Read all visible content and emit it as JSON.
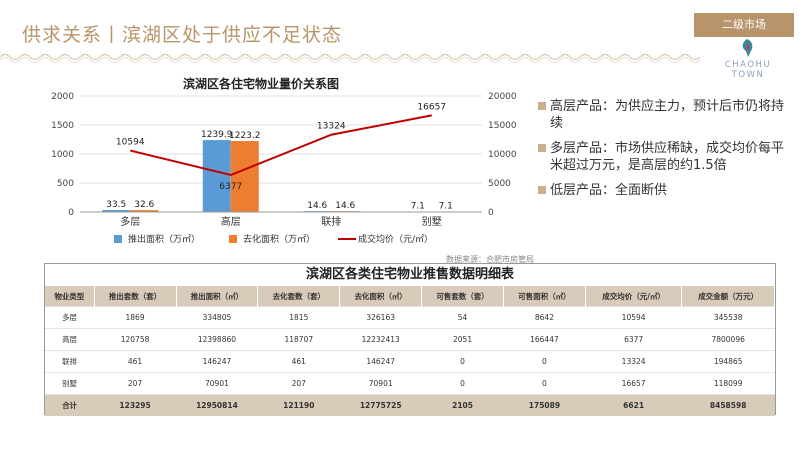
{
  "header": {
    "title": "供求关系丨滨湖区处于供应不足状态",
    "tag": "二级市场",
    "logo_text": "CHAOHU TOWN"
  },
  "chart_data": {
    "type": "bar",
    "title": "滨湖区各住宅物业量价关系图",
    "categories": [
      "多层",
      "高层",
      "联排",
      "别墅"
    ],
    "series": [
      {
        "name": "推出面积（万㎡）",
        "type": "bar",
        "axis": "left",
        "color": "#5b9bd5",
        "values": [
          33.5,
          1239.9,
          14.6,
          7.1
        ]
      },
      {
        "name": "去化面积（万㎡）",
        "type": "bar",
        "axis": "left",
        "color": "#ed7d31",
        "values": [
          32.6,
          1223.2,
          14.6,
          7.1
        ]
      },
      {
        "name": "成交均价（元/㎡）",
        "type": "line",
        "axis": "right",
        "color": "#c00000",
        "values": [
          10594,
          6377,
          13324,
          16657
        ]
      }
    ],
    "y_left": {
      "min": 0,
      "max": 2000,
      "ticks": [
        0,
        500,
        1000,
        1500,
        2000
      ]
    },
    "y_right": {
      "min": 0,
      "max": 20000,
      "ticks": [
        0,
        5000,
        10000,
        15000,
        20000
      ]
    },
    "source_note": "数据来源：合肥市房管局"
  },
  "bullets": [
    "高层产品：为供应主力，预计后市仍将持续",
    "多层产品：市场供应稀缺，成交均价每平米超过万元，是高层的约1.5倍",
    "低层产品：全面断供"
  ],
  "table": {
    "title": "滨湖区各类住宅物业推售数据明细表",
    "headers": [
      "物业类型",
      "推出套数（套）",
      "推出面积（㎡）",
      "去化套数（套）",
      "去化面积（㎡）",
      "可售套数（套）",
      "可售面积（㎡）",
      "成交均价（元/㎡）",
      "成交金额（万元）"
    ],
    "rows": [
      [
        "多层",
        "1869",
        "334805",
        "1815",
        "326163",
        "54",
        "8642",
        "10594",
        "345538"
      ],
      [
        "高层",
        "120758",
        "12398860",
        "118707",
        "12232413",
        "2051",
        "166447",
        "6377",
        "7800096"
      ],
      [
        "联排",
        "461",
        "146247",
        "461",
        "146247",
        "0",
        "0",
        "13324",
        "194865"
      ],
      [
        "别墅",
        "207",
        "70901",
        "207",
        "70901",
        "0",
        "0",
        "16657",
        "118099"
      ]
    ],
    "total": [
      "合计",
      "123295",
      "12950814",
      "121190",
      "12775725",
      "2105",
      "175089",
      "6621",
      "8458598"
    ]
  },
  "colors": {
    "accent": "#b8946a",
    "table_header": "#d9cbb9"
  }
}
